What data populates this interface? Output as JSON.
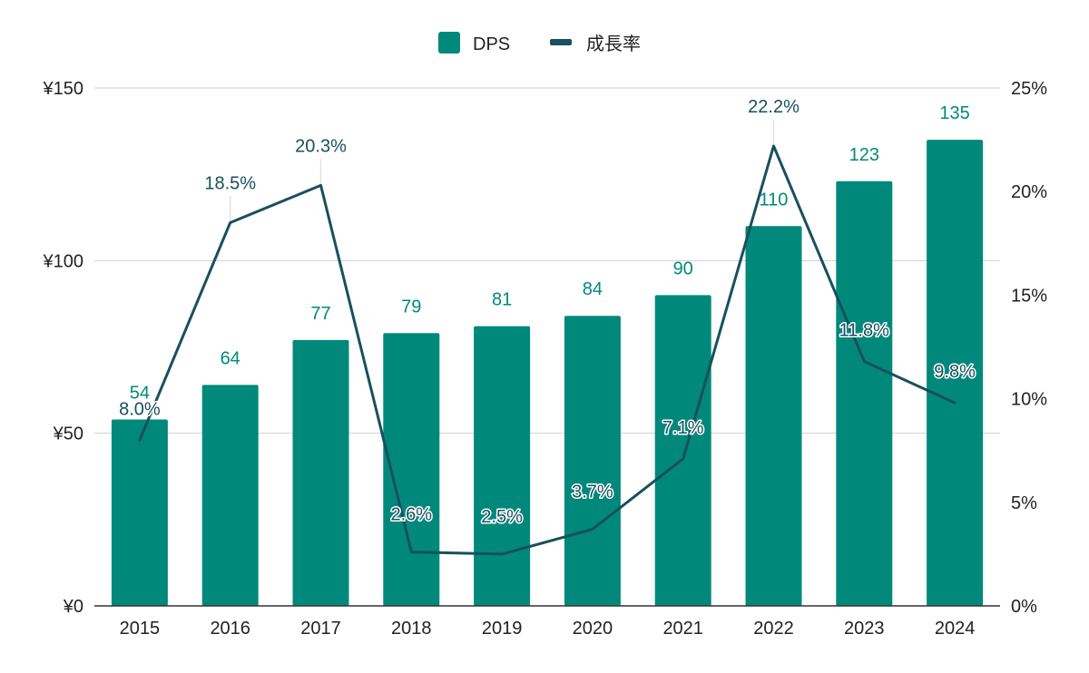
{
  "chart_data": {
    "type": "bar",
    "categories": [
      "2015",
      "2016",
      "2017",
      "2018",
      "2019",
      "2020",
      "2021",
      "2022",
      "2023",
      "2024"
    ],
    "series": [
      {
        "name": "DPS",
        "type": "bar",
        "axis": "left",
        "color": "#00897b",
        "values": [
          54,
          64,
          77,
          79,
          81,
          84,
          90,
          110,
          123,
          135
        ],
        "labels": [
          "54",
          "64",
          "77",
          "79",
          "81",
          "84",
          "90",
          "110",
          "123",
          "135"
        ]
      },
      {
        "name": "成長率",
        "type": "line",
        "axis": "right",
        "color": "#18505e",
        "values": [
          8.0,
          18.5,
          20.3,
          2.6,
          2.5,
          3.7,
          7.1,
          22.2,
          11.8,
          9.8
        ],
        "labels": [
          "8.0%",
          "18.5%",
          "20.3%",
          "2.6%",
          "2.5%",
          "3.7%",
          "7.1%",
          "22.2%",
          "11.8%",
          "9.8%"
        ]
      }
    ],
    "y_left": {
      "min": 0,
      "max": 150,
      "ticks": [
        0,
        50,
        100,
        150
      ],
      "tick_labels": [
        "¥0",
        "¥50",
        "¥100",
        "¥150"
      ]
    },
    "y_right": {
      "min": 0,
      "max": 25,
      "ticks": [
        0,
        5,
        10,
        15,
        20,
        25
      ],
      "tick_labels": [
        "0%",
        "5%",
        "10%",
        "15%",
        "20%",
        "25%"
      ]
    },
    "grid": true,
    "legend_position": "top-center"
  }
}
